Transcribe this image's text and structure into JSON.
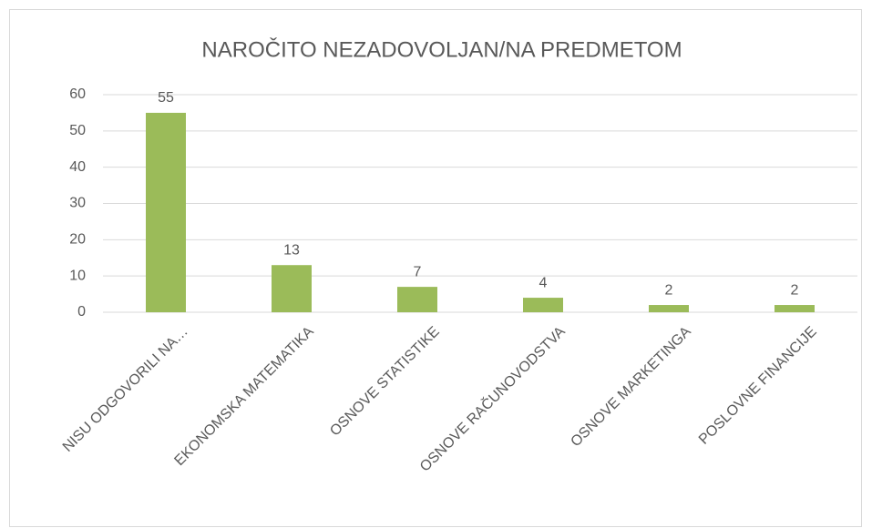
{
  "chart_data": {
    "type": "bar",
    "title": "NAROČITO NEZADOVOLJAN/NA PREDMETOM",
    "categories": [
      "NISU ODGOVORILI NA…",
      "EKONOMSKA MATEMATIKA",
      "OSNOVE STATISTIKE",
      "OSNOVE RAČUNOVODSTVA",
      "OSNOVE MARKETINGA",
      "POSLOVNE FINANCIJE"
    ],
    "values": [
      55,
      13,
      7,
      4,
      2,
      2
    ],
    "color": "#9bbb59",
    "ylim": [
      0,
      60
    ],
    "yticks": [
      0,
      10,
      20,
      30,
      40,
      50,
      60
    ],
    "grid": true
  }
}
